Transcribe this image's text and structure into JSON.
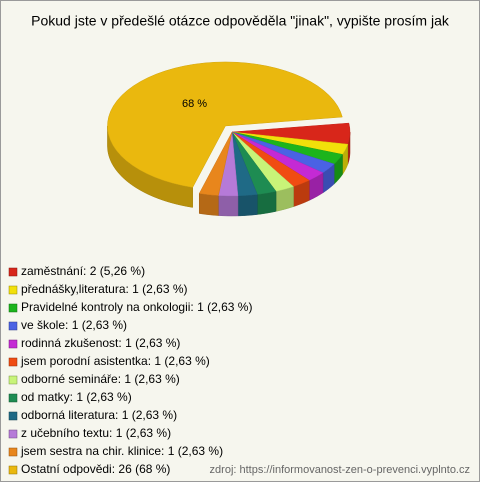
{
  "chart_data": {
    "type": "pie",
    "title": "Pokud jste v předešlé otázce odpověděla \"jinak\", vypište prosím jak",
    "categories": [
      "zaměstnání: 2 (5,26 %)",
      "přednášky,literatura: 1 (2,63 %)",
      "Pravidelné kontroly na onkologii: 1 (2,63 %)",
      "ve škole: 1 (2,63 %)",
      "rodinná zkušenost: 1 (2,63 %)",
      "jsem porodní asistentka: 1 (2,63 %)",
      "odborné semináře: 1 (2,63 %)",
      "od matky: 1 (2,63 %)",
      "odborná literatura: 1 (2,63 %)",
      "z učebního textu: 1 (2,63 %)",
      "jsem sestra na chir. klinice: 1 (2,63 %)",
      "Ostatní odpovědi: 26 (68 %)"
    ],
    "values": [
      5.26,
      2.63,
      2.63,
      2.63,
      2.63,
      2.63,
      2.63,
      2.63,
      2.63,
      2.63,
      2.63,
      68
    ],
    "value_labels": [
      null,
      null,
      null,
      null,
      null,
      null,
      null,
      null,
      null,
      null,
      null,
      "68 %"
    ],
    "colors": [
      "#d8261a",
      "#f2e00a",
      "#1cb41c",
      "#4a62e4",
      "#c42ad4",
      "#f04c12",
      "#c8f478",
      "#1e8c52",
      "#1f6a86",
      "#b67ad8",
      "#e8861c",
      "#eab80e"
    ],
    "source": "zdroj: https://informovanost-zen-o-prevenci.vyplnto.cz"
  }
}
